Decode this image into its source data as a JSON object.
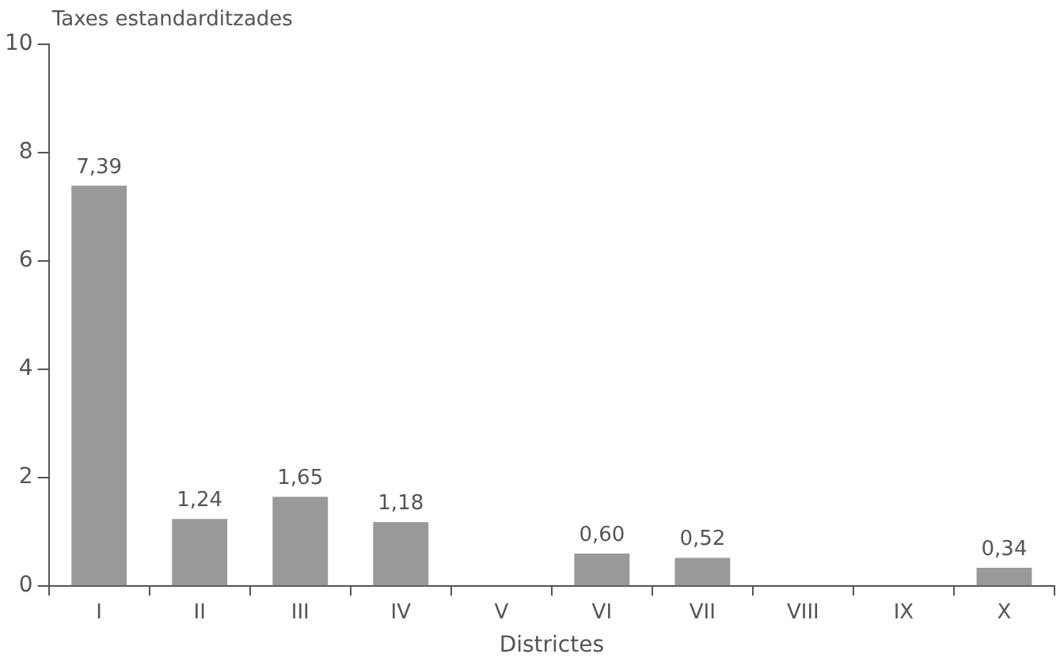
{
  "chart_data": {
    "type": "bar",
    "xlabel": "Districtes",
    "ylabel": "Taxes estandarditzades",
    "categories": [
      "I",
      "II",
      "III",
      "IV",
      "V",
      "VI",
      "VII",
      "VIII",
      "IX",
      "X"
    ],
    "values": [
      7.39,
      1.24,
      1.65,
      1.18,
      null,
      0.6,
      0.52,
      null,
      null,
      0.34
    ],
    "value_labels": [
      "7,39",
      "1,24",
      "1,65",
      "1,18",
      null,
      "0,60",
      "0,52",
      null,
      null,
      "0,34"
    ],
    "color": "#999999",
    "ylim": [
      0,
      10
    ],
    "yticks": [
      0,
      2,
      4,
      6,
      8,
      10
    ],
    "grid": false,
    "legend": false
  }
}
